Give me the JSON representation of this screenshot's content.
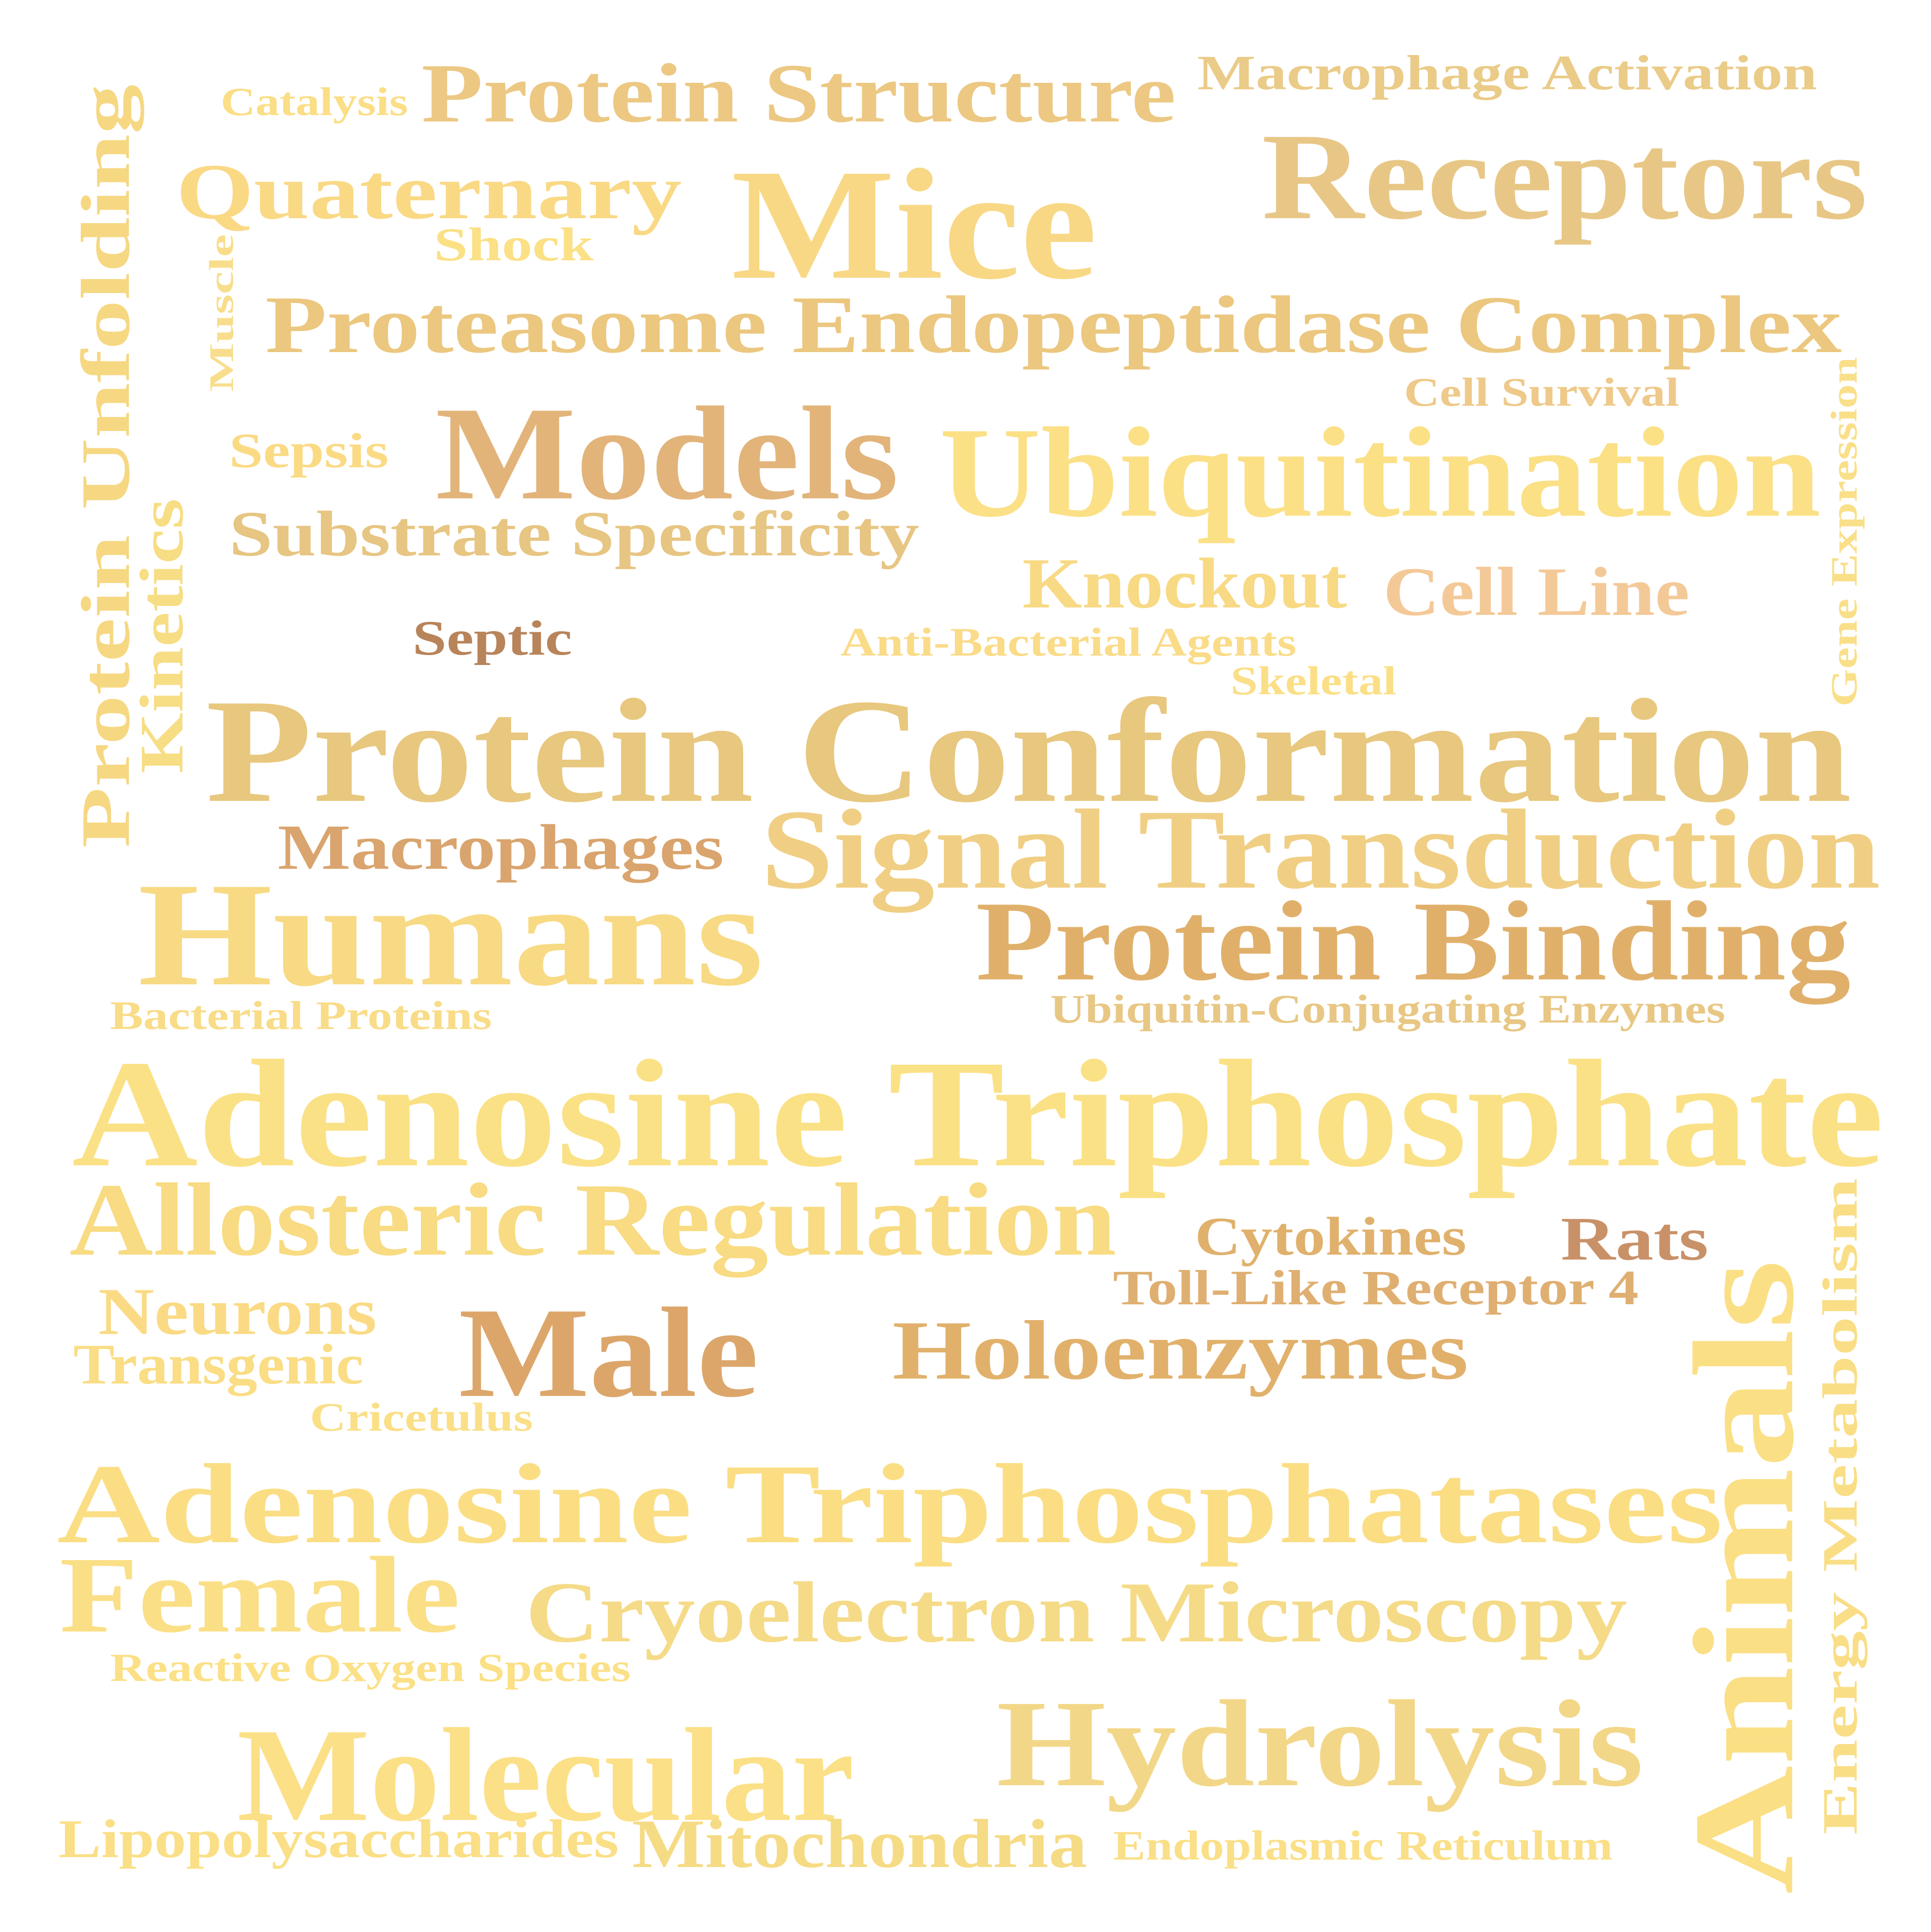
{
  "word_cloud": {
    "words": [
      {
        "text": "Catalysis",
        "color": "#FBDE85"
      },
      {
        "text": "Protein Structure",
        "color": "#ECC883"
      },
      {
        "text": "Macrophage Activation",
        "color": "#EACB87"
      },
      {
        "text": "Quaternary",
        "color": "#FAD985"
      },
      {
        "text": "Mice",
        "color": "#F8D885"
      },
      {
        "text": "Receptors",
        "color": "#E8C786"
      },
      {
        "text": "Shock",
        "color": "#FBE085"
      },
      {
        "text": "Muscle",
        "color": "#F8DE8C"
      },
      {
        "text": "Proteasome Endopeptidase Complex",
        "color": "#EBC77F"
      },
      {
        "text": "Protein Unfolding",
        "color": "#F6D882"
      },
      {
        "text": "Cell Survival",
        "color": "#EEC98A"
      },
      {
        "text": "Sepsis",
        "color": "#FBDA84"
      },
      {
        "text": "Models",
        "color": "#E2B47A"
      },
      {
        "text": "Ubiquitination",
        "color": "#FBE086"
      },
      {
        "text": "Gene Expression",
        "color": "#FADF89"
      },
      {
        "text": "Substrate Specificity",
        "color": "#E7C582"
      },
      {
        "text": "Kinetics",
        "color": "#F7DD83"
      },
      {
        "text": "Knockout",
        "color": "#F8D984"
      },
      {
        "text": "Cell Line",
        "color": "#F4C998"
      },
      {
        "text": "Septic",
        "color": "#B8845A"
      },
      {
        "text": "Anti-Bacterial Agents",
        "color": "#FADB87"
      },
      {
        "text": "Skeletal",
        "color": "#FBDF87"
      },
      {
        "text": "Protein Conformation",
        "color": "#E8C77E"
      },
      {
        "text": "Macrophages",
        "color": "#D9A46D"
      },
      {
        "text": "Signal Transduction",
        "color": "#F0CF84"
      },
      {
        "text": "Humans",
        "color": "#F8DA84"
      },
      {
        "text": "Protein Binding",
        "color": "#E0B06B"
      },
      {
        "text": "Bacterial Proteins",
        "color": "#F9DC87"
      },
      {
        "text": "Ubiquitin-Conjugating Enzymes",
        "color": "#E8C784"
      },
      {
        "text": "Adenosine Triphosphate",
        "color": "#FBE186"
      },
      {
        "text": "Allosteric Regulation",
        "color": "#F8DB82"
      },
      {
        "text": "Cytokines",
        "color": "#E0B16C"
      },
      {
        "text": "Rats",
        "color": "#C99168"
      },
      {
        "text": "Toll-Like Receptor 4",
        "color": "#DFAF71"
      },
      {
        "text": "Neurons",
        "color": "#FADA84"
      },
      {
        "text": "Male",
        "color": "#DCA66B"
      },
      {
        "text": "Holoenzymes",
        "color": "#E1B16B"
      },
      {
        "text": "Animals",
        "color": "#FBDF85"
      },
      {
        "text": "Transgenic",
        "color": "#FADD84"
      },
      {
        "text": "Cricetulus",
        "color": "#FADF87"
      },
      {
        "text": "Energy Metabolism",
        "color": "#F9DE86"
      },
      {
        "text": "Adenosine Triphosphatases",
        "color": "#FBDE84"
      },
      {
        "text": "Female",
        "color": "#FBDF86"
      },
      {
        "text": "Cryoelectron Microscopy",
        "color": "#F5DB88"
      },
      {
        "text": "Reactive Oxygen Species",
        "color": "#FBE086"
      },
      {
        "text": "Molecular",
        "color": "#FCE087"
      },
      {
        "text": "Hydrolysis",
        "color": "#F3D788"
      },
      {
        "text": "Lipopolysaccharides",
        "color": "#FADF86"
      },
      {
        "text": "Mitochondria",
        "color": "#F6DB85"
      },
      {
        "text": "Endoplasmic Reticulum",
        "color": "#FADF87"
      }
    ]
  }
}
